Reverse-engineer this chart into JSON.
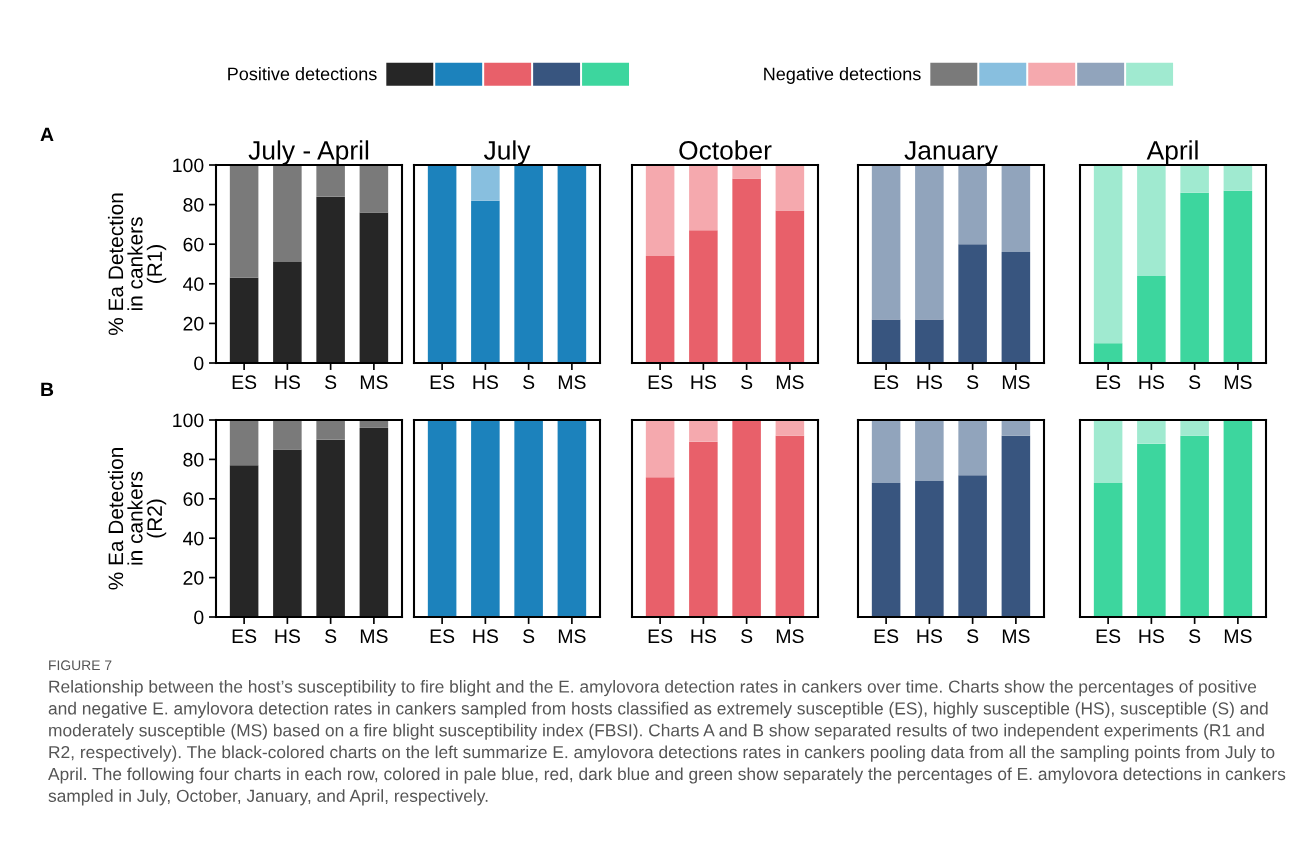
{
  "chart_data": [
    {
      "type": "bar",
      "stacked": true,
      "title": "July - April",
      "ylabel": "% Ea Detection\nin cankers\n(R1)",
      "categories": [
        "ES",
        "HS",
        "S",
        "MS"
      ],
      "ylim": [
        0,
        100
      ],
      "yticks": [
        0,
        20,
        40,
        60,
        80,
        100
      ],
      "legend": "top",
      "annotations": [
        "A",
        "FIGURE 7",
        "Relationship between the host’s susceptibility to fire blight and the E. amylovora detection rates in cankers over time. Charts show the percentages of positive and negative E. amylovora detection rates in cankers sampled from hosts classified as extremely susceptible (ES), highly susceptible (HS), susceptible (S) and moderately susceptible (MS) based on a fire blight susceptibility index (FBSI). Charts A and B show separated results of two independent experiments (R1 and R2, respectively). The black-colored charts on the left summarize E. amylovora detections rates in cankers pooling data from all the sampling points from July to April. The following four charts in each row, colored in pale blue, red, dark blue and green show separately the percentages of E. amylovora detections in cankers sampled in July, October, January, and April, respectively."
      ],
      "series": [
        {
          "name": "Positive detections",
          "color": "#262626",
          "values": [
            43,
            51,
            84,
            76
          ]
        },
        {
          "name": "Negative detections",
          "color": "#7a7a7a",
          "values": [
            57,
            49,
            16,
            24
          ]
        }
      ]
    },
    {
      "type": "bar",
      "stacked": true,
      "title": "July",
      "categories": [
        "ES",
        "HS",
        "S",
        "MS"
      ],
      "ylim": [
        0,
        100
      ],
      "tick_labels": "x",
      "series": [
        {
          "color": "#1c82bc",
          "values": [
            100,
            82,
            100,
            100
          ]
        },
        {
          "color": "#88bfdf",
          "values": [
            0,
            18,
            0,
            0
          ]
        }
      ]
    },
    {
      "type": "bar",
      "stacked": true,
      "title": "October",
      "categories": [
        "ES",
        "HS",
        "S",
        "MS"
      ],
      "ylim": [
        0,
        100
      ],
      "tick_labels": "x",
      "series": [
        {
          "color": "#e8606a",
          "values": [
            54,
            67,
            93,
            77
          ]
        },
        {
          "color": "#f5a9ae",
          "values": [
            46,
            33,
            7,
            23
          ]
        }
      ]
    },
    {
      "type": "bar",
      "stacked": true,
      "title": "January",
      "categories": [
        "ES",
        "HS",
        "S",
        "MS"
      ],
      "ylim": [
        0,
        100
      ],
      "tick_labels": "x",
      "series": [
        {
          "color": "#38557f",
          "values": [
            22,
            22,
            60,
            56
          ]
        },
        {
          "color": "#91a4bc",
          "values": [
            78,
            78,
            40,
            44
          ]
        }
      ]
    },
    {
      "type": "bar",
      "stacked": true,
      "title": "April",
      "categories": [
        "ES",
        "HS",
        "S",
        "MS"
      ],
      "ylim": [
        0,
        100
      ],
      "tick_labels": "x",
      "series": [
        {
          "color": "#3dd69e",
          "values": [
            10,
            44,
            86,
            87
          ]
        },
        {
          "color": "#a0ead0",
          "values": [
            90,
            56,
            14,
            13
          ]
        }
      ]
    },
    {
      "type": "bar",
      "stacked": true,
      "ylabel": "% Ea Detection\nin cankers\n(R2)",
      "categories": [
        "ES",
        "HS",
        "S",
        "MS"
      ],
      "ylim": [
        0,
        100
      ],
      "yticks": [
        0,
        20,
        40,
        60,
        80,
        100
      ],
      "annotations": [
        "B"
      ],
      "series": [
        {
          "color": "#262626",
          "values": [
            77,
            85,
            90,
            96
          ]
        },
        {
          "color": "#7a7a7a",
          "values": [
            23,
            15,
            10,
            4
          ]
        }
      ]
    },
    {
      "type": "bar",
      "stacked": true,
      "categories": [
        "ES",
        "HS",
        "S",
        "MS"
      ],
      "ylim": [
        0,
        100
      ],
      "tick_labels": "x",
      "series": [
        {
          "color": "#1c82bc",
          "values": [
            100,
            100,
            100,
            100
          ]
        },
        {
          "color": "#88bfdf",
          "values": [
            0,
            0,
            0,
            0
          ]
        }
      ]
    },
    {
      "type": "bar",
      "stacked": true,
      "categories": [
        "ES",
        "HS",
        "S",
        "MS"
      ],
      "ylim": [
        0,
        100
      ],
      "tick_labels": "x",
      "series": [
        {
          "color": "#e8606a",
          "values": [
            71,
            89,
            100,
            92
          ]
        },
        {
          "color": "#f5a9ae",
          "values": [
            29,
            11,
            0,
            8
          ]
        }
      ]
    },
    {
      "type": "bar",
      "stacked": true,
      "categories": [
        "ES",
        "HS",
        "S",
        "MS"
      ],
      "ylim": [
        0,
        100
      ],
      "tick_labels": "x",
      "series": [
        {
          "color": "#38557f",
          "values": [
            68,
            69,
            72,
            92
          ]
        },
        {
          "color": "#91a4bc",
          "values": [
            32,
            31,
            28,
            8
          ]
        }
      ]
    },
    {
      "type": "bar",
      "stacked": true,
      "categories": [
        "ES",
        "HS",
        "S",
        "MS"
      ],
      "ylim": [
        0,
        100
      ],
      "tick_labels": "x",
      "series": [
        {
          "color": "#3dd69e",
          "values": [
            68,
            88,
            92,
            100
          ]
        },
        {
          "color": "#a0ead0",
          "values": [
            32,
            12,
            8,
            0
          ]
        }
      ]
    }
  ]
}
